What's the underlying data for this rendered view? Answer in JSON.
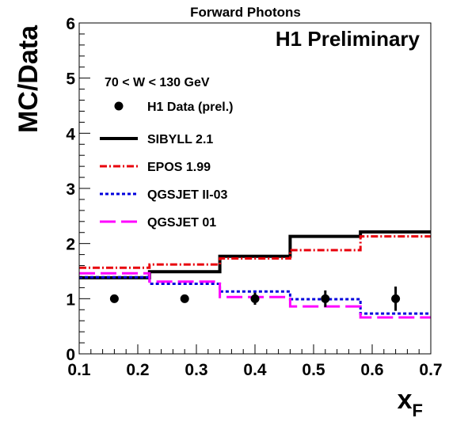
{
  "chart_data": {
    "type": "line",
    "title": "Forward Photons",
    "annotation": "H1 Preliminary",
    "cut_label": "70 < W < 130 GeV",
    "xlabel": "x",
    "xlabel_sub": "F",
    "ylabel": "MC/Data",
    "xlim": [
      0.1,
      0.7
    ],
    "ylim": [
      0,
      6
    ],
    "x_ticks": [
      "0.1",
      "0.2",
      "0.3",
      "0.4",
      "0.5",
      "0.6",
      "0.7"
    ],
    "y_ticks": [
      "0",
      "1",
      "2",
      "3",
      "4",
      "5",
      "6"
    ],
    "grid": false,
    "legend_position": "left",
    "bin_edges": [
      0.1,
      0.22,
      0.34,
      0.46,
      0.58,
      0.7
    ],
    "data": {
      "name": "H1 Data (prel.)",
      "color": "#000000",
      "x": [
        0.16,
        0.28,
        0.4,
        0.52,
        0.64
      ],
      "y": [
        1.0,
        1.0,
        1.0,
        1.0,
        1.0
      ],
      "yerr": [
        0.05,
        0.07,
        0.11,
        0.15,
        0.22
      ]
    },
    "series": [
      {
        "name": "SIBYLL 2.1",
        "color": "#000000",
        "dash": "solid",
        "values": [
          1.38,
          1.49,
          1.77,
          2.13,
          2.21
        ]
      },
      {
        "name": "EPOS 1.99",
        "color": "#e8000b",
        "dash": "dashdot",
        "values": [
          1.56,
          1.62,
          1.73,
          1.88,
          2.13
        ]
      },
      {
        "name": "QGSJET II-03",
        "color": "#0000dd",
        "dash": "dotted",
        "values": [
          1.39,
          1.27,
          1.13,
          0.99,
          0.73
        ]
      },
      {
        "name": "QGSJET 01",
        "color": "#ff00ff",
        "dash": "longdash",
        "values": [
          1.46,
          1.31,
          1.03,
          0.86,
          0.66
        ]
      }
    ]
  }
}
